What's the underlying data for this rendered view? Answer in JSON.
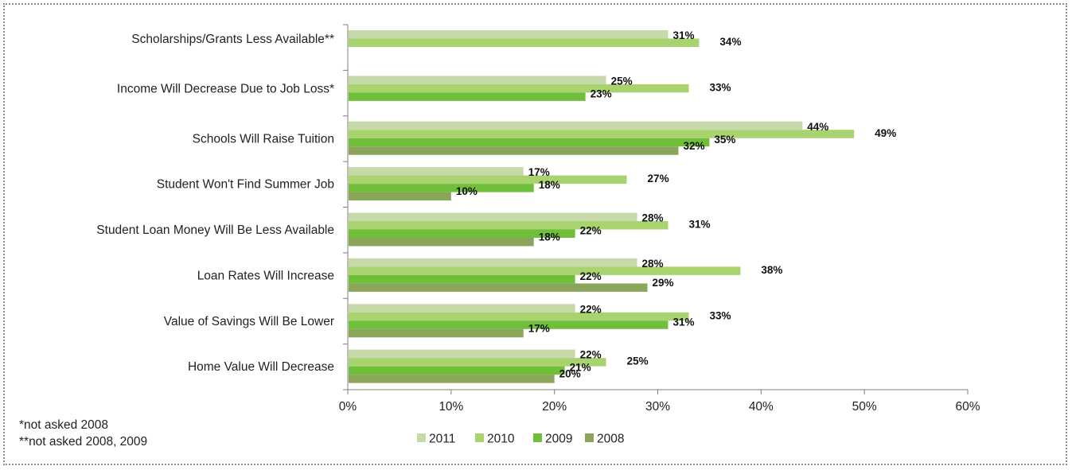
{
  "chart_data": {
    "type": "bar",
    "orientation": "horizontal",
    "categories": [
      "Scholarships/Grants Less Available**",
      "Income Will Decrease Due to Job Loss*",
      "Schools Will Raise Tuition",
      "Student Won't Find Summer Job",
      "Student Loan Money Will Be Less Available",
      "Loan Rates Will Increase",
      "Value of Savings Will Be Lower",
      "Home Value Will Decrease"
    ],
    "series": [
      {
        "name": "2011",
        "color": "#c6d9a9",
        "values": [
          31,
          25,
          44,
          17,
          28,
          28,
          22,
          22
        ]
      },
      {
        "name": "2010",
        "color": "#a9d36e",
        "values": [
          34,
          33,
          49,
          27,
          31,
          38,
          33,
          25
        ]
      },
      {
        "name": "2009",
        "color": "#6fbf3a",
        "values": [
          null,
          23,
          35,
          18,
          22,
          22,
          31,
          21
        ]
      },
      {
        "name": "2008",
        "color": "#8ba65b",
        "values": [
          null,
          null,
          32,
          10,
          18,
          29,
          17,
          20
        ]
      }
    ],
    "value_format": "percent",
    "xlim": [
      0,
      60
    ],
    "xticks": [
      "0%",
      "10%",
      "20%",
      "30%",
      "40%",
      "50%",
      "60%"
    ],
    "grid": false,
    "legend_position": "bottom"
  },
  "footnotes": [
    "*not asked 2008",
    "**not asked 2008, 2009"
  ]
}
